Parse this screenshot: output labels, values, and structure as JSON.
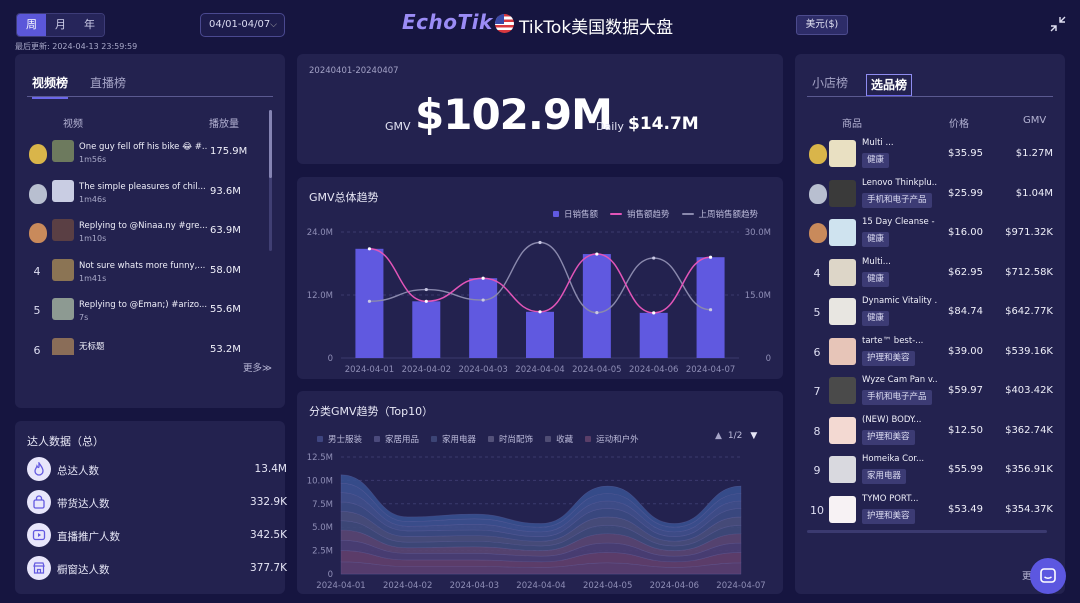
{
  "header": {
    "period_tabs": [
      "周",
      "月",
      "年"
    ],
    "active_period": "周",
    "last_updated": "最后更新: 2024-04-13 23:59:59",
    "date_range": "04/01-04/07",
    "brand": "EchoTik",
    "page_title": "TikTok美国数据大盘",
    "currency": "美元($)"
  },
  "video_panel": {
    "tabs": [
      "视频榜",
      "直播榜"
    ],
    "col_video": "视频",
    "col_plays": "播放量",
    "items": [
      {
        "rank": "1",
        "title": "One guy fell off his bike 😂 #...",
        "duration": "1m56s",
        "plays": "175.9M",
        "thumb": "#6d7a5e"
      },
      {
        "rank": "2",
        "title": "The simple pleasures of chil...",
        "duration": "1m46s",
        "plays": "93.6M",
        "thumb": "#c9cde3"
      },
      {
        "rank": "3",
        "title": "Replying to @Ninaa.ny #gre...",
        "duration": "1m10s",
        "plays": "63.9M",
        "thumb": "#5a3f44"
      },
      {
        "rank": "4",
        "title": "Not sure whats more funny,...",
        "duration": "1m41s",
        "plays": "58.0M",
        "thumb": "#8b7454"
      },
      {
        "rank": "5",
        "title": "Replying to @Eman;) #arizo...",
        "duration": "7s",
        "plays": "55.6M",
        "thumb": "#8d9a92"
      },
      {
        "rank": "6",
        "title": "无标题",
        "duration": "",
        "plays": "53.2M",
        "thumb": "#8a6d58"
      }
    ],
    "more": "更多≫"
  },
  "creator_stats": {
    "title": "达人数据（总）",
    "items": [
      {
        "label": "总达人数",
        "value": "13.4M",
        "icon": "flame-icon"
      },
      {
        "label": "带货达人数",
        "value": "332.9K",
        "icon": "shopping-bag-icon"
      },
      {
        "label": "直播推广人数",
        "value": "342.5K",
        "icon": "live-icon"
      },
      {
        "label": "橱窗达人数",
        "value": "377.7K",
        "icon": "storefront-icon"
      }
    ]
  },
  "gmv_summary": {
    "date": "20240401-20240407",
    "gmv_label": "GMV",
    "gmv_value": "$102.9M",
    "daily_label": "Daily",
    "daily_value": "$14.7M"
  },
  "gmv_trend": {
    "title": "GMV总体趋势",
    "legend": [
      "日销售额",
      "销售额趋势",
      "上周销售额趋势"
    ]
  },
  "category_trend": {
    "title": "分类GMV趋势（Top10）",
    "legend": [
      "男士服装",
      "家居用品",
      "家用电器",
      "时尚配饰",
      "收藏",
      "运动和户外"
    ],
    "pager": "1/2"
  },
  "product_panel": {
    "tabs": [
      "小店榜",
      "选品榜"
    ],
    "col_product": "商品",
    "col_price": "价格",
    "col_gmv": "GMV",
    "items": [
      {
        "rank": "1",
        "name": "Multi ...",
        "category": "健康",
        "price": "$35.95",
        "gmv": "$1.27M"
      },
      {
        "rank": "2",
        "name": "Lenovo Thinkplu...",
        "category": "手机和电子产品",
        "price": "$25.99",
        "gmv": "$1.04M"
      },
      {
        "rank": "3",
        "name": "15 Day Cleanse - ...",
        "category": "健康",
        "price": "$16.00",
        "gmv": "$971.32K"
      },
      {
        "rank": "4",
        "name": "Multi...",
        "category": "健康",
        "price": "$62.95",
        "gmv": "$712.58K"
      },
      {
        "rank": "5",
        "name": "Dynamic Vitality ...",
        "category": "健康",
        "price": "$84.74",
        "gmv": "$642.77K"
      },
      {
        "rank": "6",
        "name": "tarte™ best-...",
        "category": "护理和美容",
        "price": "$39.00",
        "gmv": "$539.16K"
      },
      {
        "rank": "7",
        "name": "Wyze Cam Pan v...",
        "category": "手机和电子产品",
        "price": "$59.97",
        "gmv": "$403.42K"
      },
      {
        "rank": "8",
        "name": "(NEW) BODY...",
        "category": "护理和美容",
        "price": "$12.50",
        "gmv": "$362.74K"
      },
      {
        "rank": "9",
        "name": "Homeika Cor...",
        "category": "家用电器",
        "price": "$55.99",
        "gmv": "$356.91K"
      },
      {
        "rank": "10",
        "name": "TYMO PORT...",
        "category": "护理和美容",
        "price": "$53.49",
        "gmv": "$354.37K"
      }
    ],
    "more": "更"
  },
  "colors": {
    "bar": "#6059e0",
    "trend": "#e255b8",
    "last_week": "#8a89ad",
    "accent": "#5b57d9"
  },
  "chart_data": [
    {
      "type": "bar",
      "title": "GMV总体趋势",
      "categories": [
        "2024-04-01",
        "2024-04-02",
        "2024-04-03",
        "2024-04-04",
        "2024-04-05",
        "2024-04-06",
        "2024-04-07"
      ],
      "y_left_ticks": [
        "0",
        "12.0M",
        "24.0M"
      ],
      "y_right_ticks": [
        "0",
        "15.0M",
        "30.0M"
      ],
      "ylim_left": [
        0,
        24
      ],
      "ylim_right": [
        0,
        30
      ],
      "series": [
        {
          "name": "日销售额",
          "type": "bar",
          "axis": "left",
          "values": [
            20.8,
            10.8,
            15.2,
            8.8,
            19.8,
            8.6,
            19.2
          ]
        },
        {
          "name": "销售额趋势",
          "type": "line",
          "axis": "left",
          "values": [
            20.8,
            10.8,
            15.2,
            8.8,
            19.8,
            8.6,
            19.2
          ]
        },
        {
          "name": "上周销售额趋势",
          "type": "line",
          "axis": "right",
          "values": [
            13.5,
            16.3,
            13.8,
            27.5,
            10.8,
            23.8,
            11.5
          ]
        }
      ]
    },
    {
      "type": "area",
      "title": "分类GMV趋势（Top10）",
      "categories": [
        "2024-04-01",
        "2024-04-02",
        "2024-04-03",
        "2024-04-04",
        "2024-04-05",
        "2024-04-06",
        "2024-04-07"
      ],
      "y_ticks": [
        "0",
        "2.5M",
        "5.0M",
        "7.5M",
        "10.0M",
        "12.5M"
      ],
      "ylim": [
        0,
        12.5
      ],
      "stacked": true,
      "series": [
        {
          "name": "男士服装",
          "values": [
            1.3,
            0.8,
            0.8,
            0.7,
            1.2,
            0.7,
            1.2
          ]
        },
        {
          "name": "家居用品",
          "values": [
            1.2,
            0.7,
            0.7,
            0.6,
            1.1,
            0.6,
            1.1
          ]
        },
        {
          "name": "家用电器",
          "values": [
            1.1,
            0.7,
            0.7,
            0.6,
            1.0,
            0.6,
            1.0
          ]
        },
        {
          "name": "时尚配饰",
          "values": [
            1.1,
            0.6,
            0.7,
            0.6,
            1.0,
            0.6,
            1.0
          ]
        },
        {
          "name": "收藏",
          "values": [
            1.0,
            0.6,
            0.6,
            0.5,
            0.9,
            0.5,
            0.9
          ]
        },
        {
          "name": "运动和户外",
          "values": [
            1.0,
            0.6,
            0.6,
            0.5,
            0.9,
            0.5,
            0.9
          ]
        },
        {
          "name": "",
          "values": [
            1.0,
            0.6,
            0.6,
            0.5,
            0.9,
            0.5,
            0.9
          ]
        },
        {
          "name": "",
          "values": [
            1.0,
            0.5,
            0.6,
            0.5,
            0.8,
            0.5,
            0.8
          ]
        },
        {
          "name": "",
          "values": [
            1.0,
            0.5,
            0.6,
            0.5,
            0.8,
            0.5,
            0.8
          ]
        },
        {
          "name": "",
          "values": [
            0.9,
            0.5,
            0.5,
            0.4,
            0.8,
            0.4,
            0.8
          ]
        }
      ]
    }
  ]
}
